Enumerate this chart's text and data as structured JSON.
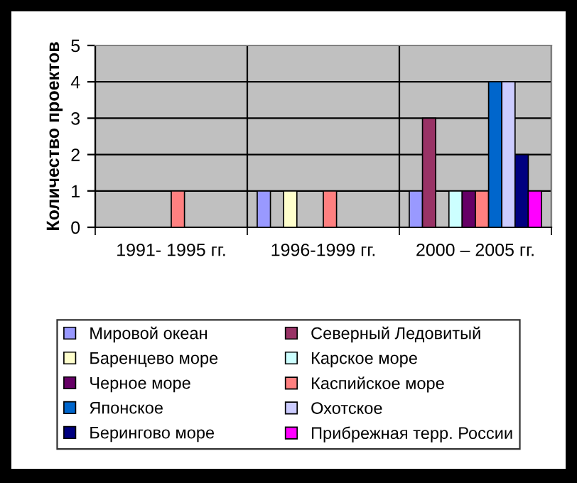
{
  "chart_data": {
    "type": "bar",
    "ylabel": "Количество проектов",
    "categories": [
      "1991- 1995 гг.",
      "1996-1999 гг.",
      "2000 – 2005 гг."
    ],
    "series": [
      {
        "name": "Мировой океан",
        "color": "#9999ff",
        "values": [
          null,
          1,
          1
        ]
      },
      {
        "name": "Северный Ледовитый",
        "color": "#993366",
        "values": [
          null,
          null,
          3
        ]
      },
      {
        "name": "Баренцево море",
        "color": "#ffffcc",
        "values": [
          null,
          1,
          null
        ]
      },
      {
        "name": "Карское море",
        "color": "#ccffff",
        "values": [
          null,
          null,
          1
        ]
      },
      {
        "name": "Черное море",
        "color": "#660066",
        "values": [
          null,
          null,
          1
        ]
      },
      {
        "name": "Каспийское море",
        "color": "#ff8080",
        "values": [
          1,
          1,
          1
        ]
      },
      {
        "name": "Японское",
        "color": "#0066cc",
        "values": [
          null,
          null,
          4
        ]
      },
      {
        "name": "Охотское",
        "color": "#ccccff",
        "values": [
          null,
          null,
          4
        ]
      },
      {
        "name": "Берингово море",
        "color": "#000080",
        "values": [
          null,
          null,
          2
        ]
      },
      {
        "name": "Прибрежная терр. России",
        "color": "#ff00ff",
        "values": [
          null,
          null,
          1
        ]
      }
    ],
    "ylim": [
      0,
      5
    ],
    "yticks": [
      0,
      1,
      2,
      3,
      4,
      5
    ],
    "grid": true,
    "legend": "bottom"
  }
}
